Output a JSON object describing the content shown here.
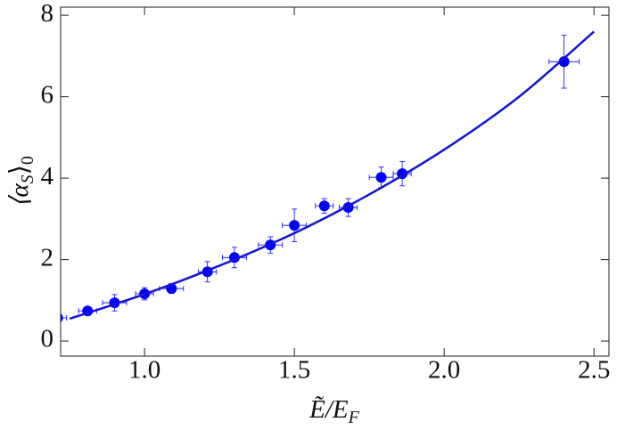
{
  "chart_data": {
    "type": "scatter",
    "xlabel": [
      "Ẽ/E",
      "F"
    ],
    "ylabel": [
      "⟨α",
      "S",
      "⟩",
      "0"
    ],
    "xlim": [
      0.72,
      2.55
    ],
    "ylim": [
      -0.37,
      8.2
    ],
    "xticks": [
      {
        "value": 1.0,
        "label": "1.0"
      },
      {
        "value": 1.5,
        "label": "1.5"
      },
      {
        "value": 2.0,
        "label": "2.0"
      },
      {
        "value": 2.5,
        "label": "2.5"
      }
    ],
    "yticks": [
      0,
      2,
      4,
      6,
      8
    ],
    "grid": false,
    "series": [
      {
        "type": "scatter",
        "color": "#0000ff",
        "x": [
          0.71,
          0.81,
          0.9,
          1.0,
          1.09,
          1.21,
          1.3,
          1.42,
          1.5,
          1.6,
          1.68,
          1.79,
          1.86,
          2.4
        ],
        "values": [
          0.57,
          0.74,
          0.94,
          1.16,
          1.29,
          1.7,
          2.05,
          2.36,
          2.84,
          3.32,
          3.28,
          4.02,
          4.11,
          6.86
        ],
        "yerr": [
          0.05,
          0.1,
          0.2,
          0.15,
          0.12,
          0.25,
          0.25,
          0.2,
          0.4,
          0.18,
          0.22,
          0.25,
          0.3,
          0.65
        ],
        "xerr": [
          0.03,
          0.03,
          0.04,
          0.03,
          0.04,
          0.03,
          0.04,
          0.04,
          0.04,
          0.03,
          0.03,
          0.04,
          0.03,
          0.05
        ]
      },
      {
        "type": "line",
        "color": "#1414d2",
        "x": [
          0.75,
          1.0,
          1.25,
          1.5,
          1.75,
          2.0,
          2.25,
          2.5
        ],
        "values": [
          0.55,
          1.15,
          1.85,
          2.65,
          3.6,
          4.7,
          6.0,
          7.6
        ]
      }
    ]
  }
}
